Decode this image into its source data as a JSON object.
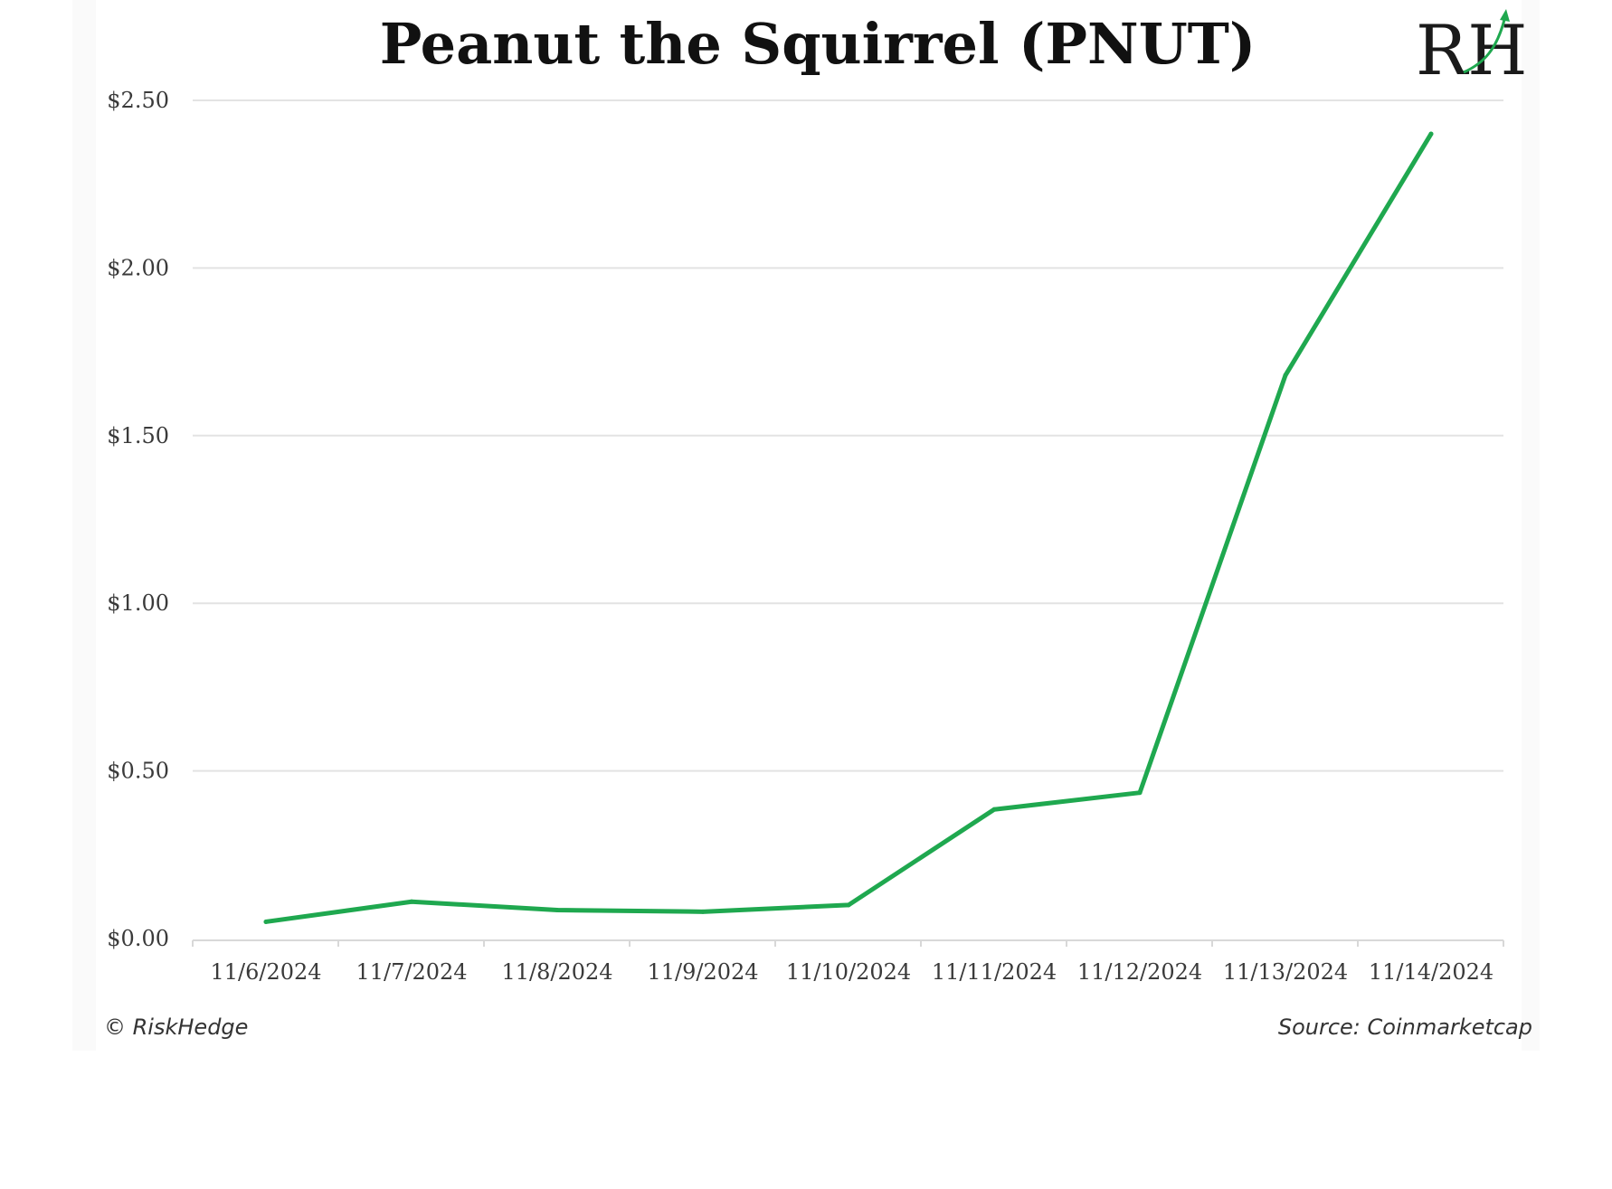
{
  "chart_data": {
    "type": "line",
    "title": "Peanut the Squirrel (PNUT)",
    "categories": [
      "11/6/2024",
      "11/7/2024",
      "11/8/2024",
      "11/9/2024",
      "11/10/2024",
      "11/11/2024",
      "11/12/2024",
      "11/13/2024",
      "11/14/2024"
    ],
    "series": [
      {
        "values": [
          0.05,
          0.11,
          0.085,
          0.08,
          0.1,
          0.385,
          0.435,
          1.68,
          2.4
        ],
        "color": "#1fa84f"
      }
    ],
    "ylim": [
      0,
      2.5
    ],
    "yticks": [
      "$0.00",
      "$0.50",
      "$1.00",
      "$1.50",
      "$2.00",
      "$2.50"
    ],
    "grid": true,
    "legend": "none"
  },
  "footer": {
    "copyright": "© RiskHedge",
    "source": "Source: Coinmarketcap"
  },
  "logo": {
    "text": "RH",
    "accent_color": "#1fa84f"
  },
  "colors": {
    "line": "#1fa84f",
    "grid": "#e3e3e3",
    "panel": "#ffffff"
  }
}
